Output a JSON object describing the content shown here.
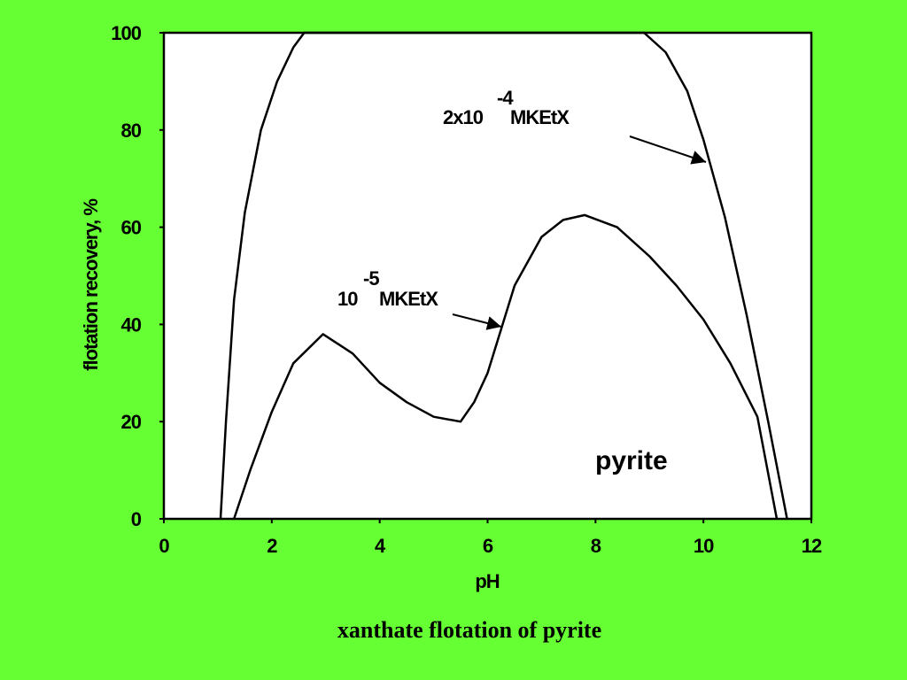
{
  "chart_data": {
    "type": "line",
    "caption": "xanthate flotation of pyrite",
    "x_label": "pH",
    "y_label": "flotation recovery, %",
    "xlim": [
      0,
      12
    ],
    "xticks": [
      0,
      2,
      4,
      6,
      8,
      10,
      12
    ],
    "ylim": [
      0,
      100
    ],
    "yticks": [
      0,
      20,
      40,
      60,
      80,
      100
    ],
    "series": [
      {
        "name": "2x10-4 MKEtX",
        "color": "#000000",
        "x": [
          1.05,
          1.15,
          1.3,
          1.5,
          1.8,
          2.1,
          2.4,
          2.6,
          8.9,
          9.3,
          9.7,
          10.0,
          10.4,
          10.8,
          11.2,
          11.55
        ],
        "values": [
          0,
          20,
          45,
          63,
          80,
          90,
          97,
          100,
          100,
          96,
          88,
          78,
          62,
          42,
          20,
          0
        ]
      },
      {
        "name": "10-5 MKEtX",
        "color": "#000000",
        "x": [
          1.3,
          1.6,
          2.0,
          2.4,
          2.95,
          3.5,
          4.0,
          4.5,
          5.0,
          5.5,
          5.75,
          6.0,
          6.5,
          7.0,
          7.4,
          7.8,
          8.4,
          9.0,
          9.5,
          10.0,
          10.5,
          11.0,
          11.36
        ],
        "values": [
          0,
          10,
          22,
          32,
          38,
          34,
          28,
          24,
          21,
          20,
          24,
          30,
          48,
          58,
          61.5,
          62.5,
          60,
          54,
          48,
          41,
          32,
          21,
          0
        ]
      }
    ],
    "annotations": [
      {
        "base": "2x10",
        "exponent": "-4",
        "unit": "MKEtX"
      },
      {
        "base": "10",
        "exponent": "-5",
        "unit": "MKEtX"
      },
      {
        "text": "pyrite"
      }
    ]
  }
}
